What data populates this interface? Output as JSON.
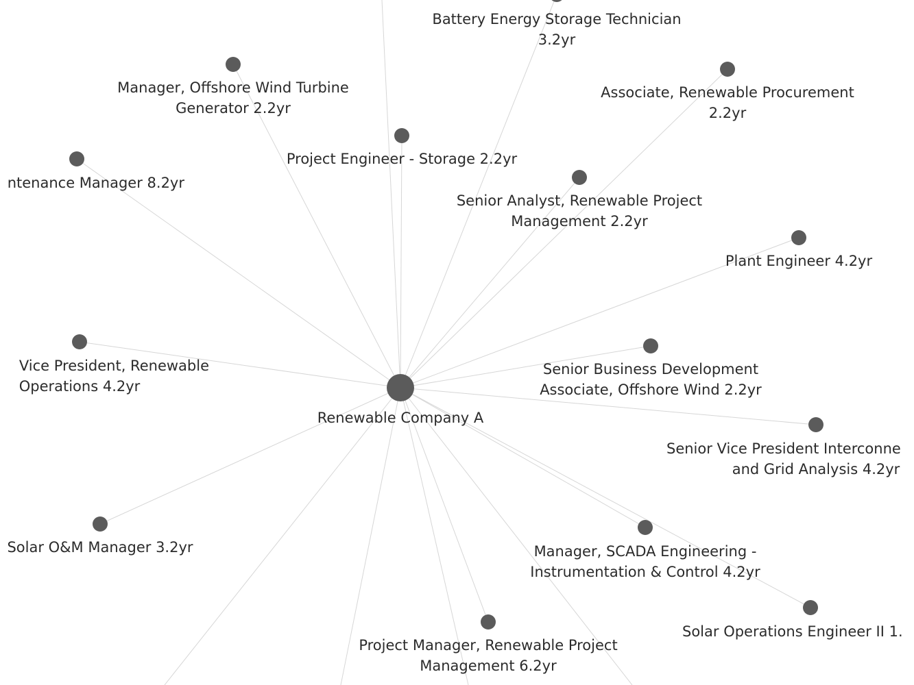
{
  "graph": {
    "center": {
      "label": [
        "Renewable Company A"
      ]
    },
    "nodes": [
      {
        "label": [
          "Battery Energy Storage Technician",
          "3.2yr"
        ]
      },
      {
        "label": [
          "Manager, Offshore Wind Turbine",
          "Generator 2.2yr"
        ]
      },
      {
        "label": [
          "Associate, Renewable Procurement",
          "2.2yr"
        ]
      },
      {
        "label": [
          "Project Engineer - Storage 2.2yr"
        ]
      },
      {
        "label": [
          "ntenance Manager 8.2yr"
        ]
      },
      {
        "label": [
          "Senior Analyst, Renewable Project",
          "Management 2.2yr"
        ]
      },
      {
        "label": [
          "Plant Engineer 4.2yr"
        ]
      },
      {
        "label": [
          "Vice President, Renewable",
          "Operations 4.2yr"
        ]
      },
      {
        "label": [
          "Senior Business Development",
          "Associate, Offshore Wind 2.2yr"
        ]
      },
      {
        "label": [
          "Senior Vice President Interconne",
          "and Grid Analysis 4.2yr"
        ]
      },
      {
        "label": [
          "Solar O&M Manager 3.2yr"
        ]
      },
      {
        "label": [
          "Manager, SCADA Engineering -",
          "Instrumentation & Control 4.2yr"
        ]
      },
      {
        "label": [
          "Solar Operations Engineer II 1."
        ]
      },
      {
        "label": [
          "Project Manager, Renewable Project",
          "Management 6.2yr"
        ]
      }
    ],
    "colors": {
      "node": "#5b5b5b",
      "edge": "#d6d6d6",
      "text": "#2b2b2b"
    }
  }
}
